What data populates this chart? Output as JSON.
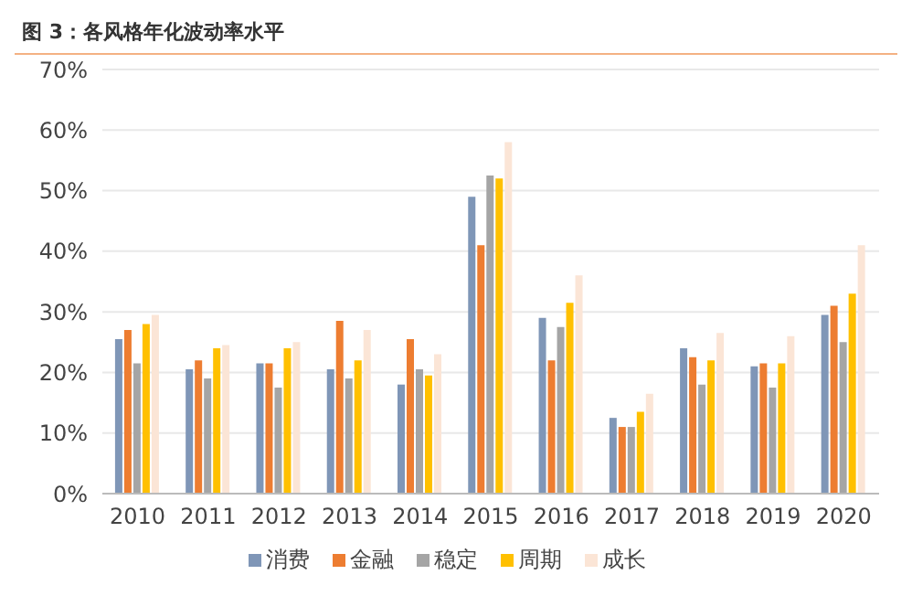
{
  "chart_data": {
    "type": "bar",
    "title": "图 3：各风格年化波动率水平",
    "categories": [
      "2010",
      "2011",
      "2012",
      "2013",
      "2014",
      "2015",
      "2016",
      "2017",
      "2018",
      "2019",
      "2020"
    ],
    "series": [
      {
        "name": "消费",
        "color": "#7f96b7",
        "values": [
          25.5,
          20.5,
          21.5,
          20.5,
          18,
          49,
          29,
          12.5,
          24,
          21,
          29.5
        ]
      },
      {
        "name": "金融",
        "color": "#ed7d31",
        "values": [
          27,
          22,
          21.5,
          28.5,
          25.5,
          41,
          22,
          11,
          22.5,
          21.5,
          31
        ]
      },
      {
        "name": "稳定",
        "color": "#a5a5a5",
        "values": [
          21.5,
          19,
          17.5,
          19,
          20.5,
          52.5,
          27.5,
          11,
          18,
          17.5,
          25
        ]
      },
      {
        "name": "周期",
        "color": "#ffc000",
        "values": [
          28,
          24,
          24,
          22,
          19.5,
          52,
          31.5,
          13.5,
          22,
          21.5,
          33
        ]
      },
      {
        "name": "成长",
        "color": "#fbe5d6",
        "values": [
          29.5,
          24.5,
          25,
          27,
          23,
          58,
          36,
          16.5,
          26.5,
          26,
          41
        ]
      }
    ],
    "ylim": [
      0,
      70
    ],
    "yticks": [
      {
        "value": 0,
        "label": "0%"
      },
      {
        "value": 10,
        "label": "10%"
      },
      {
        "value": 20,
        "label": "20%"
      },
      {
        "value": 30,
        "label": "30%"
      },
      {
        "value": 40,
        "label": "40%"
      },
      {
        "value": 50,
        "label": "50%"
      },
      {
        "value": 60,
        "label": "60%"
      },
      {
        "value": 70,
        "label": "70%"
      }
    ],
    "grid": "y",
    "legend": "bottom"
  }
}
